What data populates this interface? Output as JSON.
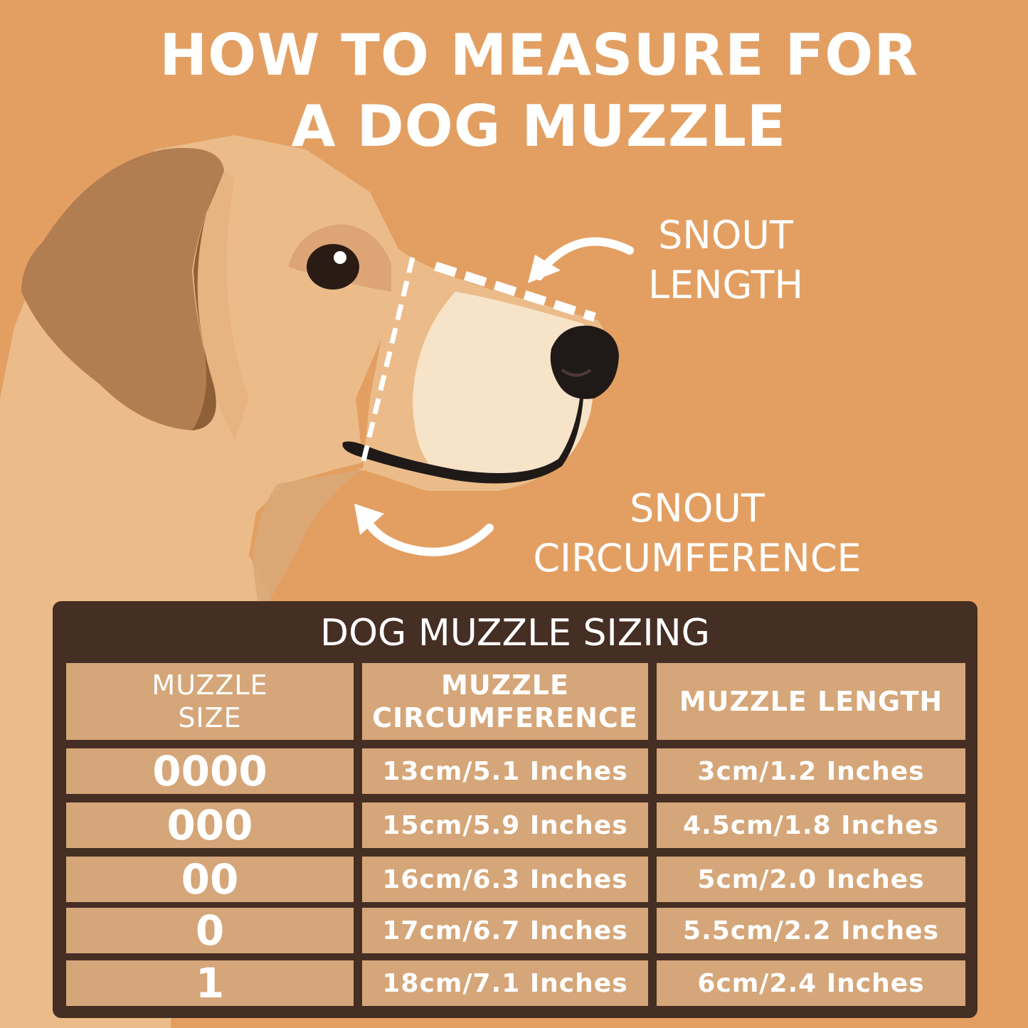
{
  "title": {
    "line1": "HOW TO MEASURE FOR",
    "line2": "A DOG MUZZLE"
  },
  "annotations": {
    "snout_length": {
      "line1": "SNOUT",
      "line2": "LENGTH"
    },
    "snout_circumference": {
      "line1": "SNOUT",
      "line2": "CIRCUMFERENCE"
    }
  },
  "table": {
    "title": "DOG MUZZLE SIZING",
    "headers": {
      "size": {
        "line1": "MUZZLE",
        "line2": "SIZE"
      },
      "circumference": {
        "line1": "MUZZLE",
        "line2": "CIRCUMFERENCE"
      },
      "length": "MUZZLE LENGTH"
    },
    "rows": [
      {
        "size": "0000",
        "circumference": "13cm/5.1 Inches",
        "length": "3cm/1.2 Inches"
      },
      {
        "size": "000",
        "circumference": "15cm/5.9 Inches",
        "length": "4.5cm/1.8 Inches"
      },
      {
        "size": "00",
        "circumference": "16cm/6.3 Inches",
        "length": "5cm/2.0 Inches"
      },
      {
        "size": "0",
        "circumference": "17cm/6.7 Inches",
        "length": "5.5cm/2.2 Inches"
      },
      {
        "size": "1",
        "circumference": "18cm/7.1 Inches",
        "length": "6cm/2.4 Inches"
      }
    ]
  },
  "colors": {
    "background": "#E39F62",
    "dog_fur": "#EBBC8A",
    "ear": "#B17D51",
    "muzzle": "#F7E3C8",
    "nose": "#1F1A18",
    "table_frame": "#452E23",
    "table_cell": "#D5A679"
  },
  "icons": [
    "dog-illustration",
    "curved-arrow-icon"
  ]
}
